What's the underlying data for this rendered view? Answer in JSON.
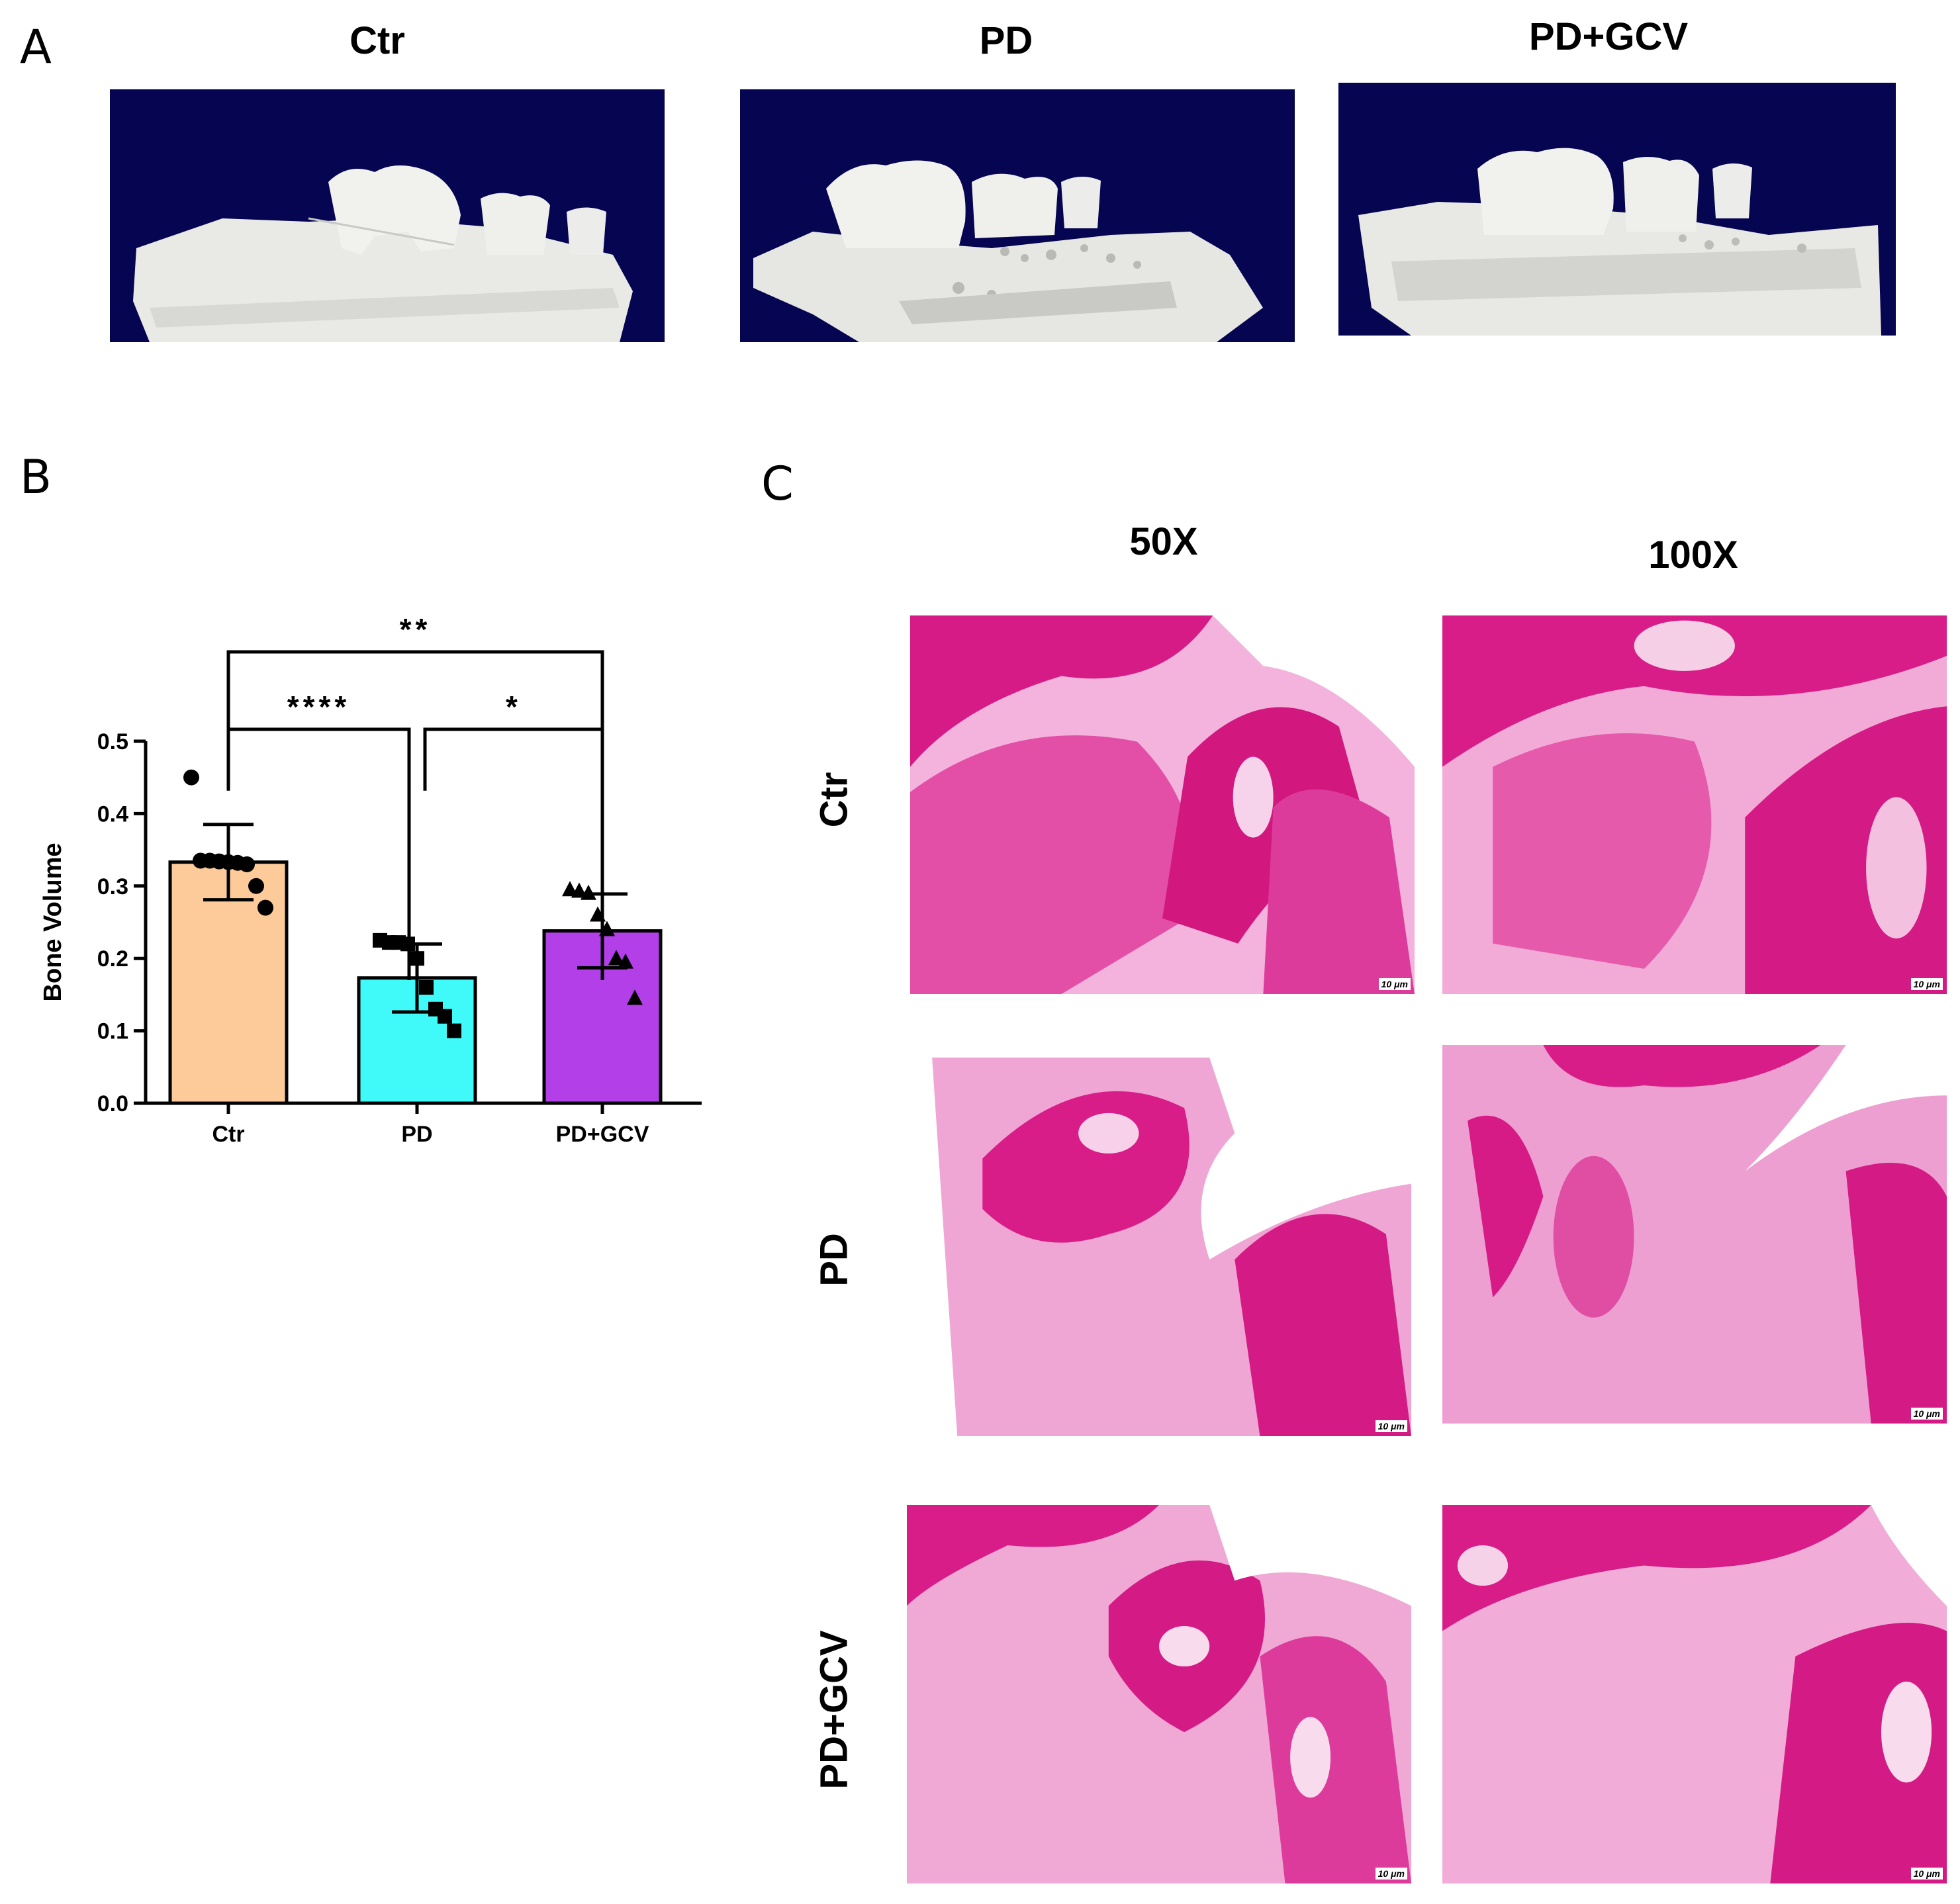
{
  "panels": {
    "a": {
      "letter": "A",
      "titles": [
        "Ctr",
        "PD",
        "PD+GCV"
      ]
    },
    "b": {
      "letter": "B"
    },
    "c": {
      "letter": "C",
      "col_titles": [
        "50X",
        "100X"
      ],
      "row_titles": [
        "Ctr",
        "PD",
        "PD+GCV"
      ],
      "scale_label": "10 μm"
    }
  },
  "colors": {
    "ct_background": "#050552",
    "ctr_bar": "#fdcb9a",
    "pd_bar": "#40fafa",
    "pdgcv_bar": "#b23fe8",
    "he_stain_dark": "#d81b84",
    "he_stain_light": "#f0a5d4"
  },
  "chart_data": {
    "type": "bar",
    "categories": [
      "Ctr",
      "PD",
      "PD+GCV"
    ],
    "values": [
      0.333,
      0.173,
      0.238
    ],
    "error_sd": [
      0.052,
      0.047,
      0.051
    ],
    "points": [
      [
        0.45,
        0.335,
        0.335,
        0.334,
        0.333,
        0.332,
        0.33,
        0.3,
        0.27
      ],
      [
        0.225,
        0.222,
        0.222,
        0.22,
        0.2,
        0.16,
        0.13,
        0.12,
        0.1
      ],
      [
        0.295,
        0.293,
        0.29,
        0.26,
        0.24,
        0.2,
        0.195,
        0.145
      ]
    ],
    "markers": [
      "circle",
      "square",
      "triangle"
    ],
    "ylabel": "Bone Volume",
    "ylim": [
      0,
      0.5
    ],
    "yticks": [
      "0.0",
      "0.1",
      "0.2",
      "0.3",
      "0.4",
      "0.5"
    ],
    "significance": [
      {
        "from": "Ctr",
        "to": "PD+GCV",
        "label": "**"
      },
      {
        "from": "Ctr",
        "to": "PD",
        "label": "****"
      },
      {
        "from": "PD",
        "to": "PD+GCV",
        "label": "*"
      }
    ]
  }
}
